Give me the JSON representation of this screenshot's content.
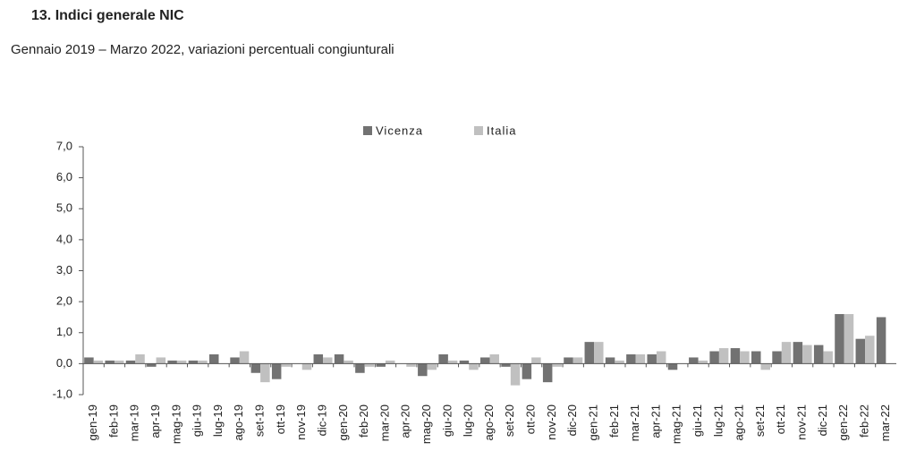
{
  "chart_data": {
    "type": "bar",
    "title": "13.  Indici generale NIC",
    "subtitle": "Gennaio 2019 – Marzo 2022, variazioni percentuali congiunturali",
    "categories": [
      "gen-19",
      "feb-19",
      "mar-19",
      "apr-19",
      "mag-19",
      "giu-19",
      "lug-19",
      "ago-19",
      "set-19",
      "ott-19",
      "nov-19",
      "dic-19",
      "gen-20",
      "feb-20",
      "mar-20",
      "apr-20",
      "mag-20",
      "giu-20",
      "lug-20",
      "ago-20",
      "set-20",
      "ott-20",
      "nov-20",
      "dic-20",
      "gen-21",
      "feb-21",
      "mar-21",
      "apr-21",
      "mag-21",
      "giu-21",
      "lug-21",
      "ago-21",
      "set-21",
      "ott-21",
      "nov-21",
      "dic-21",
      "gen-22",
      "feb-22",
      "mar-22"
    ],
    "series": [
      {
        "name": "Vicenza",
        "color": "#727272",
        "values": [
          0.2,
          0.1,
          0.1,
          -0.1,
          0.1,
          0.1,
          0.3,
          0.2,
          -0.3,
          -0.5,
          0.0,
          0.3,
          0.3,
          -0.3,
          -0.1,
          0.0,
          -0.4,
          0.3,
          0.1,
          0.2,
          -0.1,
          -0.5,
          -0.6,
          0.2,
          0.7,
          0.2,
          0.3,
          0.3,
          -0.2,
          0.2,
          0.4,
          0.5,
          0.4,
          0.4,
          0.7,
          0.6,
          1.6,
          0.8,
          1.5
        ]
      },
      {
        "name": "Italia",
        "color": "#c0c0c0",
        "values": [
          0.1,
          0.1,
          0.3,
          0.2,
          0.1,
          0.1,
          0.0,
          0.4,
          -0.6,
          -0.1,
          -0.2,
          0.2,
          0.1,
          -0.1,
          0.1,
          -0.1,
          -0.2,
          0.1,
          -0.2,
          0.3,
          -0.7,
          0.2,
          -0.1,
          0.2,
          0.7,
          0.1,
          0.3,
          0.4,
          0.0,
          0.1,
          0.5,
          0.4,
          -0.2,
          0.7,
          0.6,
          0.4,
          1.6,
          0.9,
          null
        ]
      }
    ],
    "ylim": [
      -1,
      7
    ],
    "yticks": [
      {
        "value": -1,
        "label": "-1,0"
      },
      {
        "value": 0,
        "label": "0,0"
      },
      {
        "value": 1,
        "label": "1,0"
      },
      {
        "value": 2,
        "label": "2,0"
      },
      {
        "value": 3,
        "label": "3,0"
      },
      {
        "value": 4,
        "label": "4,0"
      },
      {
        "value": 5,
        "label": "5,0"
      },
      {
        "value": 6,
        "label": "6,0"
      },
      {
        "value": 7,
        "label": "7,0"
      }
    ],
    "grid": false
  }
}
